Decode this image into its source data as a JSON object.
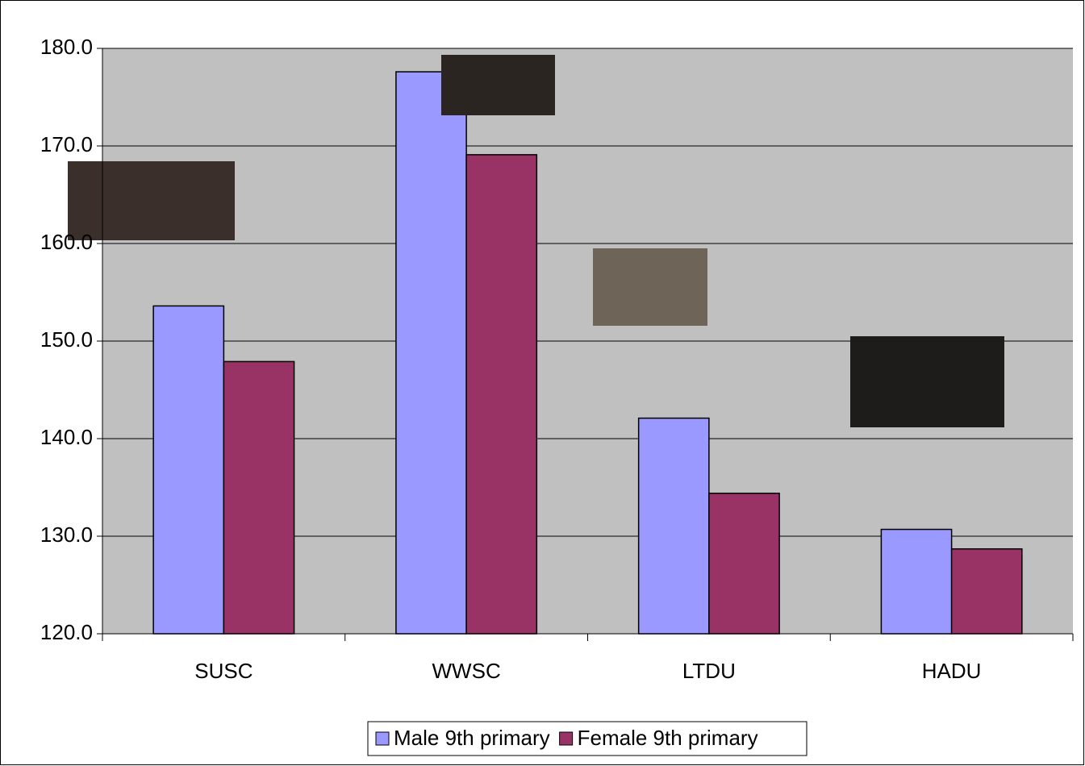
{
  "chart_data": {
    "type": "bar",
    "categories": [
      "SUSC",
      "WWSC",
      "LTDU",
      "HADU"
    ],
    "series": [
      {
        "name": "Male 9th primary",
        "color": "#9999ff",
        "values": [
          153.6,
          177.6,
          142.1,
          130.7
        ]
      },
      {
        "name": "Female 9th primary",
        "color": "#993366",
        "values": [
          147.9,
          169.1,
          134.4,
          128.7
        ]
      }
    ],
    "ylim": [
      120,
      180
    ],
    "yticks": [
      {
        "value": 120,
        "label": "120.0"
      },
      {
        "value": 130,
        "label": "130.0"
      },
      {
        "value": 140,
        "label": "140.0"
      },
      {
        "value": 150,
        "label": "150.0"
      },
      {
        "value": 160,
        "label": "160.0"
      },
      {
        "value": 170,
        "label": "170.0"
      },
      {
        "value": 180,
        "label": "180.0"
      }
    ],
    "grid": true,
    "legend": "bottom"
  }
}
